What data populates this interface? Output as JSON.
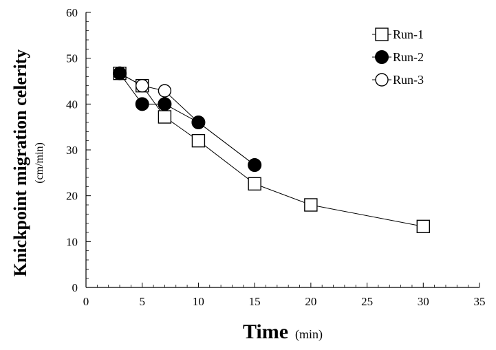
{
  "chart_data": {
    "type": "line",
    "xlabel": "Time",
    "xlabel_unit": "(min)",
    "ylabel": "Knickpoint migration celerity",
    "ylabel_unit": "(cm/min)",
    "xlim": [
      0,
      35
    ],
    "ylim": [
      0,
      60
    ],
    "x_ticks": [
      0,
      5,
      10,
      15,
      20,
      25,
      30,
      35
    ],
    "y_ticks": [
      0,
      10,
      20,
      30,
      40,
      50,
      60
    ],
    "x_tick_labels": [
      "0",
      "5",
      "10",
      "15",
      "20",
      "25",
      "30",
      "35"
    ],
    "y_tick_labels": [
      "0",
      "10",
      "20",
      "30",
      "40",
      "50",
      "60"
    ],
    "grid": false,
    "legend_position": "top-right",
    "series": [
      {
        "name": "Run-1",
        "marker": "square-open",
        "x": [
          3,
          5,
          7,
          10,
          15,
          20,
          30
        ],
        "y": [
          46.7,
          44,
          37.2,
          32,
          22.6,
          18,
          13.3
        ]
      },
      {
        "name": "Run-2",
        "marker": "circle-filled",
        "x": [
          3,
          5,
          7,
          10,
          15
        ],
        "y": [
          46.7,
          40,
          40,
          36,
          26.7
        ]
      },
      {
        "name": "Run-3",
        "marker": "circle-open",
        "x": [
          3,
          5,
          7,
          10,
          15
        ],
        "y": [
          46.7,
          44,
          42.9,
          36,
          26.7
        ]
      }
    ]
  }
}
